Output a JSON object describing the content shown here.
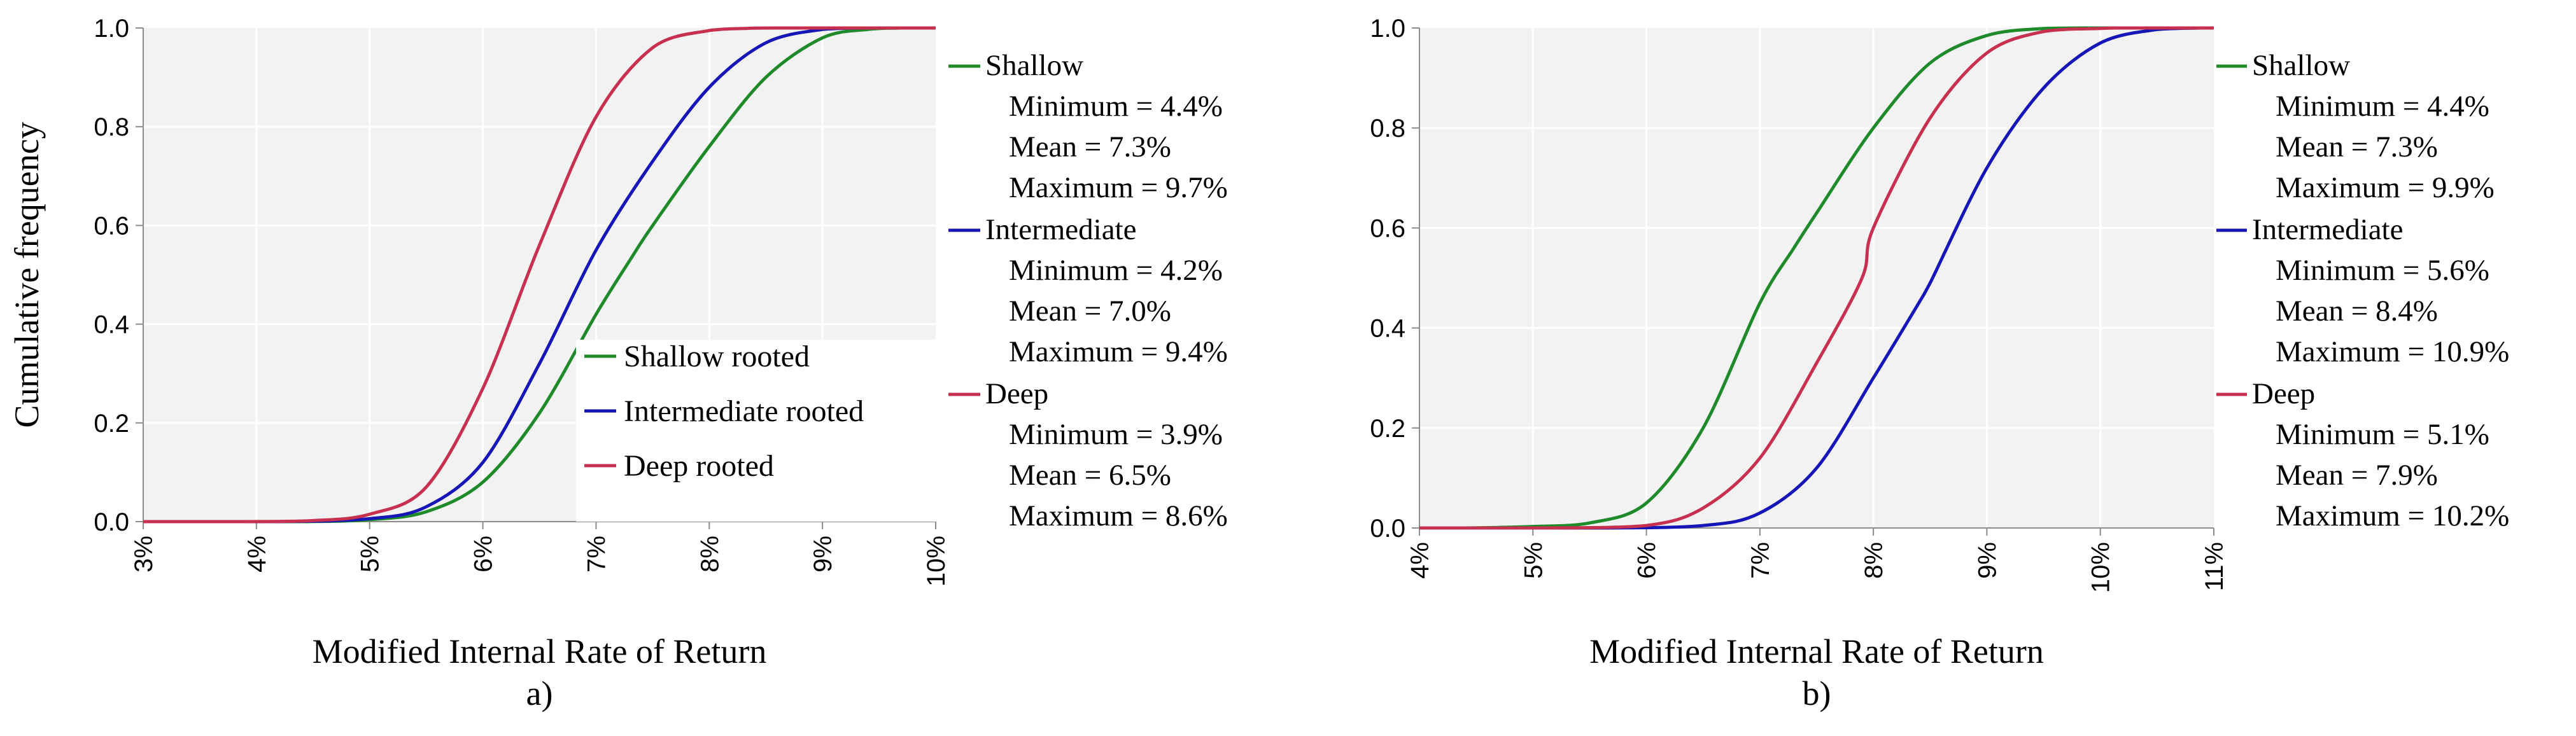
{
  "colors": {
    "shallow": "#1e8a2a",
    "intermediate": "#1515b8",
    "deep": "#c8304f",
    "plot_bg": "#f2f2f2",
    "grid": "#ffffff",
    "axis": "#8c8c8c"
  },
  "chart_data": [
    {
      "type": "line",
      "panel_label": "a)",
      "xlabel": "Modified Internal Rate of Return",
      "ylabel": "Cumulative frequency",
      "xlim": [
        3,
        10
      ],
      "ylim": [
        0,
        1
      ],
      "x_ticks": [
        "3%",
        "4%",
        "5%",
        "6%",
        "7%",
        "8%",
        "9%",
        "10%"
      ],
      "y_ticks": [
        "0.0",
        "0.2",
        "0.4",
        "0.6",
        "0.8",
        "1.0"
      ],
      "grid": true,
      "legend": {
        "placement": "bottom-right-inside",
        "items": [
          "Shallow rooted",
          "Intermediate rooted",
          "Deep rooted"
        ]
      },
      "series": [
        {
          "key": "shallow",
          "name": "Shallow",
          "x": [
            4.4,
            5.0,
            5.5,
            6.0,
            6.5,
            7.0,
            7.3,
            7.5,
            8.0,
            8.5,
            9.0,
            9.4,
            9.7
          ],
          "y": [
            0.0,
            0.004,
            0.02,
            0.08,
            0.22,
            0.42,
            0.53,
            0.6,
            0.76,
            0.9,
            0.98,
            0.997,
            1.0
          ]
        },
        {
          "key": "intermediate",
          "name": "Intermediate",
          "x": [
            4.2,
            5.0,
            5.5,
            6.0,
            6.5,
            7.0,
            7.5,
            8.0,
            8.5,
            9.0,
            9.4
          ],
          "y": [
            0.0,
            0.006,
            0.03,
            0.12,
            0.32,
            0.55,
            0.73,
            0.88,
            0.97,
            0.997,
            1.0
          ]
        },
        {
          "key": "deep",
          "name": "Deep",
          "x": [
            3.9,
            4.5,
            5.0,
            5.5,
            6.0,
            6.5,
            7.0,
            7.5,
            8.0,
            8.3,
            8.6
          ],
          "y": [
            0.0,
            0.002,
            0.015,
            0.07,
            0.27,
            0.56,
            0.82,
            0.96,
            0.995,
            0.999,
            1.0
          ]
        }
      ],
      "stats": [
        {
          "key": "shallow",
          "name": "Shallow",
          "minimum": "Minimum = 4.4%",
          "mean": "Mean = 7.3%",
          "maximum": "Maximum = 9.7%"
        },
        {
          "key": "intermediate",
          "name": "Intermediate",
          "minimum": "Minimum = 4.2%",
          "mean": "Mean = 7.0%",
          "maximum": "Maximum = 9.4%"
        },
        {
          "key": "deep",
          "name": "Deep",
          "minimum": "Minimum = 3.9%",
          "mean": "Mean = 6.5%",
          "maximum": "Maximum = 8.6%"
        }
      ]
    },
    {
      "type": "line",
      "panel_label": "b)",
      "xlabel": "Modified Internal Rate of Return",
      "ylabel": "",
      "xlim": [
        4,
        11
      ],
      "ylim": [
        0,
        1
      ],
      "x_ticks": [
        "4%",
        "5%",
        "6%",
        "7%",
        "8%",
        "9%",
        "10%",
        "11%"
      ],
      "y_ticks": [
        "0.0",
        "0.2",
        "0.4",
        "0.6",
        "0.8",
        "1.0"
      ],
      "grid": true,
      "legend": null,
      "series": [
        {
          "key": "shallow",
          "name": "Shallow",
          "x": [
            4.4,
            5.0,
            5.5,
            6.0,
            6.5,
            7.0,
            7.3,
            7.5,
            8.0,
            8.5,
            9.0,
            9.5,
            9.9
          ],
          "y": [
            0.0,
            0.003,
            0.01,
            0.05,
            0.2,
            0.45,
            0.56,
            0.63,
            0.8,
            0.93,
            0.985,
            0.999,
            1.0
          ]
        },
        {
          "key": "intermediate",
          "name": "Intermediate",
          "x": [
            5.6,
            6.5,
            7.0,
            7.5,
            8.0,
            8.4,
            8.5,
            9.0,
            9.5,
            10.0,
            10.5,
            10.9
          ],
          "y": [
            0.0,
            0.005,
            0.03,
            0.12,
            0.3,
            0.45,
            0.49,
            0.72,
            0.88,
            0.97,
            0.997,
            1.0
          ]
        },
        {
          "key": "deep",
          "name": "Deep",
          "x": [
            5.1,
            6.0,
            6.5,
            7.0,
            7.5,
            7.9,
            8.0,
            8.5,
            9.0,
            9.5,
            10.0,
            10.2
          ],
          "y": [
            0.0,
            0.005,
            0.04,
            0.14,
            0.33,
            0.5,
            0.6,
            0.82,
            0.95,
            0.993,
            0.999,
            1.0
          ]
        }
      ],
      "stats": [
        {
          "key": "shallow",
          "name": "Shallow",
          "minimum": "Minimum = 4.4%",
          "mean": "Mean = 7.3%",
          "maximum": "Maximum = 9.9%"
        },
        {
          "key": "intermediate",
          "name": "Intermediate",
          "minimum": "Minimum = 5.6%",
          "mean": "Mean = 8.4%",
          "maximum": "Maximum = 10.9%"
        },
        {
          "key": "deep",
          "name": "Deep",
          "minimum": "Minimum = 5.1%",
          "mean": "Mean = 7.9%",
          "maximum": "Maximum = 10.2%"
        }
      ]
    }
  ]
}
